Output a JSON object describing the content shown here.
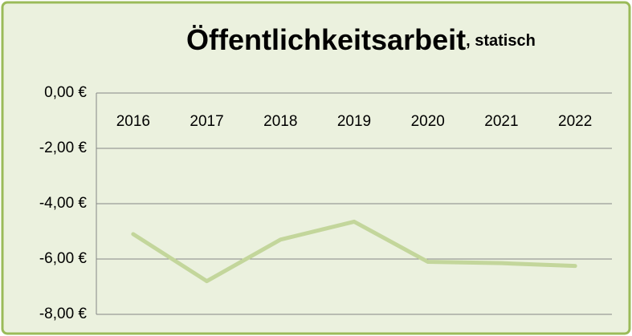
{
  "chart_data": {
    "type": "line",
    "title": "Öffentlichkeitsarbeit",
    "subtitle": ", statisch",
    "categories": [
      "2016",
      "2017",
      "2018",
      "2019",
      "2020",
      "2021",
      "2022"
    ],
    "series": [
      {
        "color": "#c3d69b",
        "values": [
          -5.1,
          -6.8,
          -5.3,
          -4.65,
          -6.1,
          -6.15,
          -6.25
        ]
      }
    ],
    "ylim": [
      -8,
      0
    ],
    "yticks": [
      {
        "value": 0,
        "label": "0,00 €"
      },
      {
        "value": -2,
        "label": "-2,00 €"
      },
      {
        "value": -4,
        "label": "-4,00 €"
      },
      {
        "value": -6,
        "label": "-6,00 €"
      },
      {
        "value": -8,
        "label": "-8,00 €"
      }
    ],
    "grid": true
  }
}
